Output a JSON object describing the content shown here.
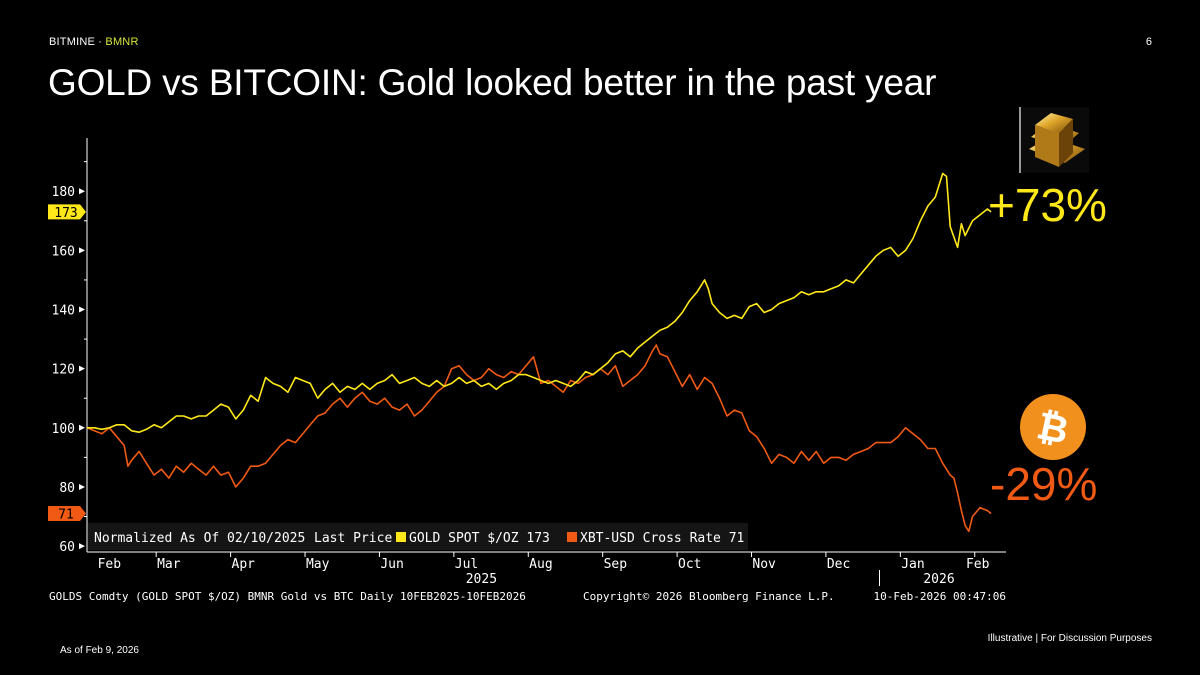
{
  "header": {
    "brand": "BITMINE",
    "separator": " · ",
    "ticker": "BMNR",
    "page_number": "6",
    "title": "GOLD vs BITCOIN: Gold looked better in the past year"
  },
  "callouts": {
    "gold_change": "+73%",
    "btc_change": "-29%"
  },
  "icons": {
    "gold": "gold-bars-icon",
    "btc": "bitcoin-icon",
    "btc_symbol": "₿"
  },
  "footer": {
    "as_of": "As of Feb 9, 2026",
    "disclaimer": "Illustrative  |  For Discussion Purposes"
  },
  "colors": {
    "background": "#000000",
    "gold": "#ffe81a",
    "btc": "#f05a14",
    "axis": "#ffffff"
  },
  "chart_data": {
    "type": "line",
    "title": "GOLD vs BITCOIN: Gold looked better in the past year",
    "ylim": [
      58,
      198
    ],
    "yticks": [
      60,
      80,
      100,
      120,
      140,
      160,
      180
    ],
    "xlim": [
      0,
      12.35
    ],
    "month_ticks": [
      {
        "label": "Feb",
        "x": 0.3
      },
      {
        "label": "Mar",
        "x": 1.1
      },
      {
        "label": "Apr",
        "x": 2.1
      },
      {
        "label": "May",
        "x": 3.1
      },
      {
        "label": "Jun",
        "x": 4.1
      },
      {
        "label": "Jul",
        "x": 5.1
      },
      {
        "label": "Aug",
        "x": 6.1
      },
      {
        "label": "Sep",
        "x": 7.1
      },
      {
        "label": "Oct",
        "x": 8.1
      },
      {
        "label": "Nov",
        "x": 9.1
      },
      {
        "label": "Dec",
        "x": 10.1
      },
      {
        "label": "Jan",
        "x": 11.1
      },
      {
        "label": "Feb",
        "x": 11.97
      }
    ],
    "year_labels": [
      {
        "label": "2025",
        "x": 5.3
      },
      {
        "label": "2026",
        "x": 11.45
      }
    ],
    "year_divider_x": 10.65,
    "last_value_tags": [
      {
        "label": "173",
        "value": 173,
        "series": "gold"
      },
      {
        "label": "71",
        "value": 71,
        "series": "btc"
      }
    ],
    "legend": {
      "prefix": "Normalized As Of 02/10/2025",
      "price_label": "Last Price",
      "gold_label": "GOLD SPOT $/OZ 173",
      "btc_label": "XBT-USD Cross Rate 71"
    },
    "series": [
      {
        "name": "GOLD SPOT $/OZ",
        "key": "gold",
        "last": 173,
        "points": [
          [
            0,
            100
          ],
          [
            0.1,
            100
          ],
          [
            0.2,
            99.5
          ],
          [
            0.3,
            100
          ],
          [
            0.4,
            101
          ],
          [
            0.5,
            101
          ],
          [
            0.6,
            99
          ],
          [
            0.7,
            98.5
          ],
          [
            0.8,
            99.5
          ],
          [
            0.9,
            101
          ],
          [
            1.0,
            100
          ],
          [
            1.1,
            102
          ],
          [
            1.2,
            104
          ],
          [
            1.3,
            104
          ],
          [
            1.4,
            103
          ],
          [
            1.5,
            104
          ],
          [
            1.6,
            104
          ],
          [
            1.7,
            106
          ],
          [
            1.8,
            108
          ],
          [
            1.9,
            107
          ],
          [
            2.0,
            103
          ],
          [
            2.1,
            106
          ],
          [
            2.2,
            111
          ],
          [
            2.3,
            109
          ],
          [
            2.4,
            117
          ],
          [
            2.45,
            116
          ],
          [
            2.5,
            115
          ],
          [
            2.6,
            114
          ],
          [
            2.7,
            112
          ],
          [
            2.8,
            117
          ],
          [
            2.9,
            116
          ],
          [
            3.0,
            115
          ],
          [
            3.1,
            110
          ],
          [
            3.2,
            113
          ],
          [
            3.3,
            115
          ],
          [
            3.4,
            112
          ],
          [
            3.5,
            114
          ],
          [
            3.6,
            113
          ],
          [
            3.7,
            115
          ],
          [
            3.8,
            113
          ],
          [
            3.9,
            115
          ],
          [
            4.0,
            116
          ],
          [
            4.1,
            118
          ],
          [
            4.2,
            115
          ],
          [
            4.3,
            116
          ],
          [
            4.4,
            117
          ],
          [
            4.5,
            115
          ],
          [
            4.6,
            114
          ],
          [
            4.7,
            116
          ],
          [
            4.8,
            114
          ],
          [
            4.9,
            115
          ],
          [
            5.0,
            117
          ],
          [
            5.1,
            115
          ],
          [
            5.2,
            116
          ],
          [
            5.3,
            114
          ],
          [
            5.4,
            115
          ],
          [
            5.5,
            113
          ],
          [
            5.6,
            115
          ],
          [
            5.7,
            116
          ],
          [
            5.8,
            118
          ],
          [
            5.9,
            118
          ],
          [
            6.0,
            117
          ],
          [
            6.1,
            116
          ],
          [
            6.2,
            115
          ],
          [
            6.3,
            116
          ],
          [
            6.4,
            115
          ],
          [
            6.5,
            114
          ],
          [
            6.6,
            116
          ],
          [
            6.7,
            119
          ],
          [
            6.8,
            118
          ],
          [
            6.9,
            120
          ],
          [
            7.0,
            122
          ],
          [
            7.1,
            125
          ],
          [
            7.2,
            126
          ],
          [
            7.3,
            124
          ],
          [
            7.4,
            127
          ],
          [
            7.5,
            129
          ],
          [
            7.6,
            131
          ],
          [
            7.7,
            133
          ],
          [
            7.8,
            134
          ],
          [
            7.9,
            136
          ],
          [
            8.0,
            139
          ],
          [
            8.1,
            143
          ],
          [
            8.2,
            146
          ],
          [
            8.3,
            150
          ],
          [
            8.35,
            147
          ],
          [
            8.4,
            142
          ],
          [
            8.5,
            139
          ],
          [
            8.6,
            137
          ],
          [
            8.7,
            138
          ],
          [
            8.8,
            137
          ],
          [
            8.9,
            141
          ],
          [
            9.0,
            142
          ],
          [
            9.1,
            139
          ],
          [
            9.2,
            140
          ],
          [
            9.3,
            142
          ],
          [
            9.4,
            143
          ],
          [
            9.5,
            144
          ],
          [
            9.6,
            146
          ],
          [
            9.7,
            145
          ],
          [
            9.8,
            146
          ],
          [
            9.9,
            146
          ],
          [
            10.0,
            147
          ],
          [
            10.1,
            148
          ],
          [
            10.2,
            150
          ],
          [
            10.3,
            149
          ],
          [
            10.4,
            152
          ],
          [
            10.5,
            155
          ],
          [
            10.6,
            158
          ],
          [
            10.7,
            160
          ],
          [
            10.8,
            161
          ],
          [
            10.9,
            158
          ],
          [
            11.0,
            160
          ],
          [
            11.1,
            164
          ],
          [
            11.2,
            170
          ],
          [
            11.3,
            175
          ],
          [
            11.4,
            178
          ],
          [
            11.5,
            186
          ],
          [
            11.55,
            185
          ],
          [
            11.6,
            168
          ],
          [
            11.7,
            161
          ],
          [
            11.75,
            169
          ],
          [
            11.8,
            165
          ],
          [
            11.9,
            170
          ],
          [
            12.0,
            172
          ],
          [
            12.1,
            174
          ],
          [
            12.15,
            173
          ]
        ]
      },
      {
        "name": "XBT-USD Cross Rate",
        "key": "btc",
        "last": 71,
        "points": [
          [
            0,
            100
          ],
          [
            0.1,
            99
          ],
          [
            0.2,
            98
          ],
          [
            0.3,
            100
          ],
          [
            0.4,
            97
          ],
          [
            0.5,
            94
          ],
          [
            0.55,
            87
          ],
          [
            0.6,
            89
          ],
          [
            0.7,
            92
          ],
          [
            0.8,
            88
          ],
          [
            0.9,
            84
          ],
          [
            1.0,
            86
          ],
          [
            1.1,
            83
          ],
          [
            1.2,
            87
          ],
          [
            1.3,
            85
          ],
          [
            1.4,
            88
          ],
          [
            1.5,
            86
          ],
          [
            1.6,
            84
          ],
          [
            1.7,
            87
          ],
          [
            1.8,
            84
          ],
          [
            1.9,
            85
          ],
          [
            2.0,
            80
          ],
          [
            2.1,
            83
          ],
          [
            2.2,
            87
          ],
          [
            2.3,
            87
          ],
          [
            2.4,
            88
          ],
          [
            2.5,
            91
          ],
          [
            2.6,
            94
          ],
          [
            2.7,
            96
          ],
          [
            2.8,
            95
          ],
          [
            2.9,
            98
          ],
          [
            3.0,
            101
          ],
          [
            3.1,
            104
          ],
          [
            3.2,
            105
          ],
          [
            3.3,
            108
          ],
          [
            3.4,
            110
          ],
          [
            3.5,
            107
          ],
          [
            3.6,
            110
          ],
          [
            3.7,
            112
          ],
          [
            3.8,
            109
          ],
          [
            3.9,
            108
          ],
          [
            4.0,
            110
          ],
          [
            4.1,
            107
          ],
          [
            4.2,
            106
          ],
          [
            4.3,
            108
          ],
          [
            4.4,
            104
          ],
          [
            4.5,
            106
          ],
          [
            4.6,
            109
          ],
          [
            4.7,
            112
          ],
          [
            4.8,
            114
          ],
          [
            4.9,
            120
          ],
          [
            5.0,
            121
          ],
          [
            5.1,
            118
          ],
          [
            5.2,
            116
          ],
          [
            5.3,
            117
          ],
          [
            5.4,
            120
          ],
          [
            5.5,
            118
          ],
          [
            5.6,
            117
          ],
          [
            5.7,
            119
          ],
          [
            5.8,
            118
          ],
          [
            5.9,
            121
          ],
          [
            6.0,
            124
          ],
          [
            6.1,
            115
          ],
          [
            6.2,
            116
          ],
          [
            6.3,
            114
          ],
          [
            6.4,
            112
          ],
          [
            6.5,
            116
          ],
          [
            6.6,
            115
          ],
          [
            6.7,
            117
          ],
          [
            6.8,
            118
          ],
          [
            6.9,
            120
          ],
          [
            7.0,
            118
          ],
          [
            7.1,
            121
          ],
          [
            7.2,
            114
          ],
          [
            7.3,
            116
          ],
          [
            7.4,
            118
          ],
          [
            7.5,
            121
          ],
          [
            7.6,
            126
          ],
          [
            7.65,
            128
          ],
          [
            7.7,
            125
          ],
          [
            7.8,
            124
          ],
          [
            7.9,
            119
          ],
          [
            8.0,
            114
          ],
          [
            8.1,
            118
          ],
          [
            8.2,
            113
          ],
          [
            8.3,
            117
          ],
          [
            8.4,
            115
          ],
          [
            8.5,
            110
          ],
          [
            8.6,
            104
          ],
          [
            8.7,
            106
          ],
          [
            8.8,
            105
          ],
          [
            8.9,
            99
          ],
          [
            9.0,
            97
          ],
          [
            9.1,
            93
          ],
          [
            9.2,
            88
          ],
          [
            9.3,
            91
          ],
          [
            9.4,
            90
          ],
          [
            9.5,
            88
          ],
          [
            9.6,
            92
          ],
          [
            9.7,
            89
          ],
          [
            9.8,
            92
          ],
          [
            9.9,
            88
          ],
          [
            10.0,
            90
          ],
          [
            10.1,
            90
          ],
          [
            10.2,
            89
          ],
          [
            10.3,
            91
          ],
          [
            10.4,
            92
          ],
          [
            10.5,
            93
          ],
          [
            10.6,
            95
          ],
          [
            10.7,
            95
          ],
          [
            10.8,
            95
          ],
          [
            10.9,
            97
          ],
          [
            11.0,
            100
          ],
          [
            11.1,
            98
          ],
          [
            11.2,
            96
          ],
          [
            11.3,
            93
          ],
          [
            11.4,
            93
          ],
          [
            11.5,
            88
          ],
          [
            11.6,
            84
          ],
          [
            11.65,
            83
          ],
          [
            11.7,
            78
          ],
          [
            11.75,
            72
          ],
          [
            11.8,
            67
          ],
          [
            11.85,
            65
          ],
          [
            11.9,
            70
          ],
          [
            12.0,
            73
          ],
          [
            12.1,
            72
          ],
          [
            12.15,
            71
          ]
        ]
      }
    ]
  },
  "bloomberg": {
    "source_line": "GOLDS Comdty (GOLD SPOT $/OZ) BMNR Gold vs BTC Daily 10FEB2025-10FEB2026",
    "copyright": "Copyright© 2026 Bloomberg Finance L.P.",
    "timestamp": "10-Feb-2026 00:47:06"
  }
}
